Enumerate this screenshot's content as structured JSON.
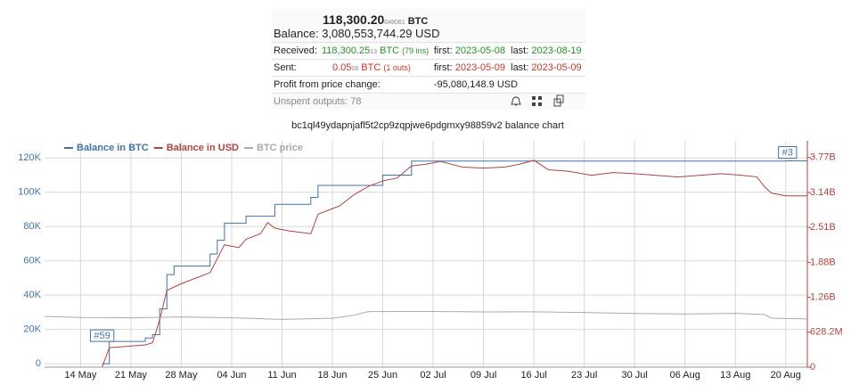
{
  "header": {
    "amount_main": "118,300.20",
    "amount_small": "048061",
    "amount_unit": "BTC",
    "balance_label": "Balance:",
    "balance_value": "3,080,553,744.29 USD"
  },
  "rows": [
    {
      "label": "Received:",
      "amount": "118,300.25",
      "small": "13",
      "unit": "BTC",
      "count": "(79 ins)",
      "first_label": "first:",
      "first": "2023-05-08",
      "last_label": "last:",
      "last": "2023-08-19"
    },
    {
      "label": "Sent:",
      "amount": "0.05",
      "small": "08",
      "unit": "BTC",
      "count": "(1 outs)",
      "first_label": "first:",
      "first": "2023-05-09",
      "last_label": "last:",
      "last": "2023-05-09"
    }
  ],
  "profit": {
    "label": "Profit from price change:",
    "value": "-95,080,148.9 USD"
  },
  "unspent": {
    "label": "Unspent outputs:",
    "value": "78"
  },
  "chart_data": {
    "type": "line",
    "title": "bc1ql49ydapnjafl5t2cp9zqpjwe6pdgmxy98859v2 balance chart",
    "xlim": [
      "09 May",
      "23 Aug"
    ],
    "xticks": [
      "14 May",
      "21 May",
      "28 May",
      "04 Jun",
      "11 Jun",
      "18 Jun",
      "25 Jun",
      "02 Jul",
      "09 Jul",
      "16 Jul",
      "23 Jul",
      "30 Jul",
      "06 Aug",
      "13 Aug",
      "20 Aug"
    ],
    "ylim": [
      -2000,
      130000
    ],
    "yticks": [
      0,
      {
        "value": 20000,
        "label": "20K"
      },
      {
        "value": 40000,
        "label": "40K"
      },
      {
        "value": 60000,
        "label": "60K"
      },
      {
        "value": 80000,
        "label": "80K"
      },
      {
        "value": 100000,
        "label": "100K"
      },
      {
        "value": 120000,
        "label": "120K"
      }
    ],
    "y2lim": [
      0,
      4070000000
    ],
    "y2ticks": [
      0,
      {
        "value": 628200000,
        "label": "628.2M"
      },
      {
        "value": 1256400000,
        "label": "1.26B"
      },
      {
        "value": 1884600000,
        "label": "1.88B"
      },
      {
        "value": 2512800000,
        "label": "2.51B"
      },
      {
        "value": 3141000000,
        "label": "3.14B"
      },
      {
        "value": 3769200000,
        "label": "3.77B"
      }
    ],
    "grid": true,
    "series": [
      {
        "name": "Balance in BTC",
        "color": "#4572a7",
        "step": true,
        "x": [
          "17 May",
          "18 May",
          "23 May",
          "24 May",
          "25 May",
          "26 May",
          "27 May",
          "01 Jun",
          "02 Jun",
          "03 Jun",
          "06 Jun",
          "10 Jun",
          "15 Jun",
          "16 Jun",
          "25 Jun",
          "29 Jun",
          "20 Aug",
          "23 Aug"
        ],
        "values": [
          0,
          13000,
          15000,
          17000,
          32000,
          52000,
          57000,
          64000,
          72000,
          82000,
          86000,
          93000,
          97000,
          104000,
          110000,
          118200,
          118300,
          118300
        ]
      },
      {
        "name": "Balance in USD",
        "color": "#aa4643",
        "axis": "y2",
        "x": [
          "17 May",
          "18 May",
          "23 May",
          "24 May",
          "25 May",
          "26 May",
          "28 May",
          "30 May",
          "01 Jun",
          "02 Jun",
          "03 Jun",
          "05 Jun",
          "06 Jun",
          "08 Jun",
          "09 Jun",
          "10 Jun",
          "12 Jun",
          "15 Jun",
          "16 Jun",
          "19 Jun",
          "21 Jun",
          "23 Jun",
          "25 Jun",
          "27 Jun",
          "29 Jun",
          "01 Jul",
          "03 Jul",
          "06 Jul",
          "09 Jul",
          "12 Jul",
          "14 Jul",
          "16 Jul",
          "18 Jul",
          "21 Jul",
          "24 Jul",
          "27 Jul",
          "30 Jul",
          "02 Aug",
          "05 Aug",
          "08 Aug",
          "11 Aug",
          "14 Aug",
          "16 Aug",
          "17 Aug",
          "18 Aug",
          "20 Aug",
          "23 Aug"
        ],
        "values": [
          0,
          350000000,
          400000000,
          440000000,
          850000000,
          1380000000,
          1500000000,
          1600000000,
          1700000000,
          1950000000,
          2200000000,
          2150000000,
          2300000000,
          2400000000,
          2600000000,
          2500000000,
          2450000000,
          2400000000,
          2750000000,
          2900000000,
          3100000000,
          3250000000,
          3350000000,
          3400000000,
          3620000000,
          3650000000,
          3700000000,
          3600000000,
          3580000000,
          3600000000,
          3650000000,
          3720000000,
          3550000000,
          3520000000,
          3450000000,
          3500000000,
          3480000000,
          3450000000,
          3420000000,
          3450000000,
          3480000000,
          3450000000,
          3420000000,
          3250000000,
          3130000000,
          3080000000,
          3080000000
        ]
      },
      {
        "name": "BTC price",
        "color": "#aaaaaa",
        "x": [
          "09 May",
          "14 May",
          "21 May",
          "28 May",
          "04 Jun",
          "11 Jun",
          "18 Jun",
          "21 Jun",
          "23 Jun",
          "02 Jul",
          "09 Jul",
          "16 Jul",
          "23 Jul",
          "30 Jul",
          "06 Aug",
          "13 Aug",
          "17 Aug",
          "18 Aug",
          "23 Aug"
        ],
        "values": [
          27600,
          27000,
          26800,
          27300,
          26800,
          25900,
          26500,
          28300,
          30400,
          30500,
          30200,
          30300,
          29900,
          29300,
          29000,
          29400,
          28700,
          26600,
          26100
        ]
      }
    ],
    "annotations": [
      {
        "text": "#59",
        "x": "17 May",
        "y": 13000
      },
      {
        "text": "#3",
        "x": "20 Aug",
        "y": 118300
      }
    ]
  }
}
